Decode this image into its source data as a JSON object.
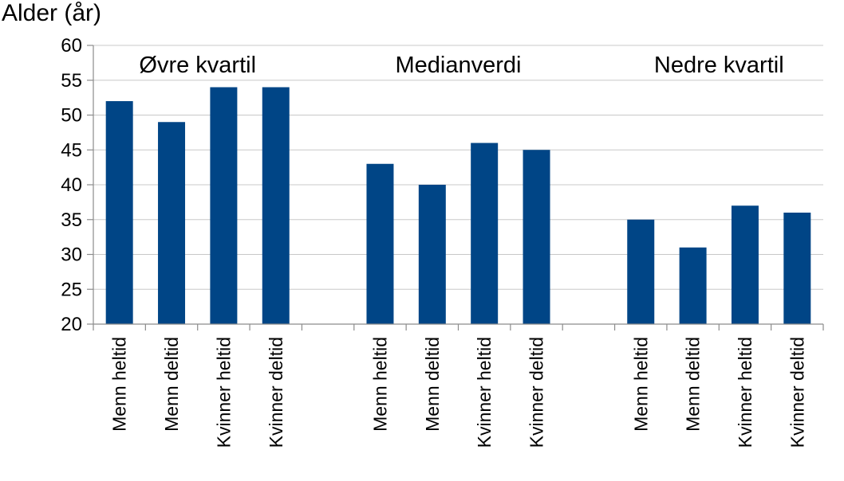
{
  "chart_data": {
    "type": "bar",
    "title": "",
    "ylabel": "Alder (år)",
    "xlabel": "",
    "ylim": [
      20,
      60
    ],
    "yticks": [
      20,
      25,
      30,
      35,
      40,
      45,
      50,
      55,
      60
    ],
    "grid": true,
    "legend": "none",
    "bar_color": "#004586",
    "groups": [
      {
        "label": "Øvre kvartil",
        "categories": [
          "Menn heltid",
          "Menn deltid",
          "Kvinner heltid",
          "Kvinner deltid"
        ],
        "values": [
          52,
          49,
          54,
          54
        ]
      },
      {
        "label": "Medianverdi",
        "categories": [
          "Menn heltid",
          "Menn deltid",
          "Kvinner heltid",
          "Kvinner deltid"
        ],
        "values": [
          43,
          40,
          46,
          45
        ]
      },
      {
        "label": "Nedre kvartil",
        "categories": [
          "Menn heltid",
          "Menn deltid",
          "Kvinner heltid",
          "Kvinner deltid"
        ],
        "values": [
          35,
          31,
          37,
          36
        ]
      }
    ]
  }
}
